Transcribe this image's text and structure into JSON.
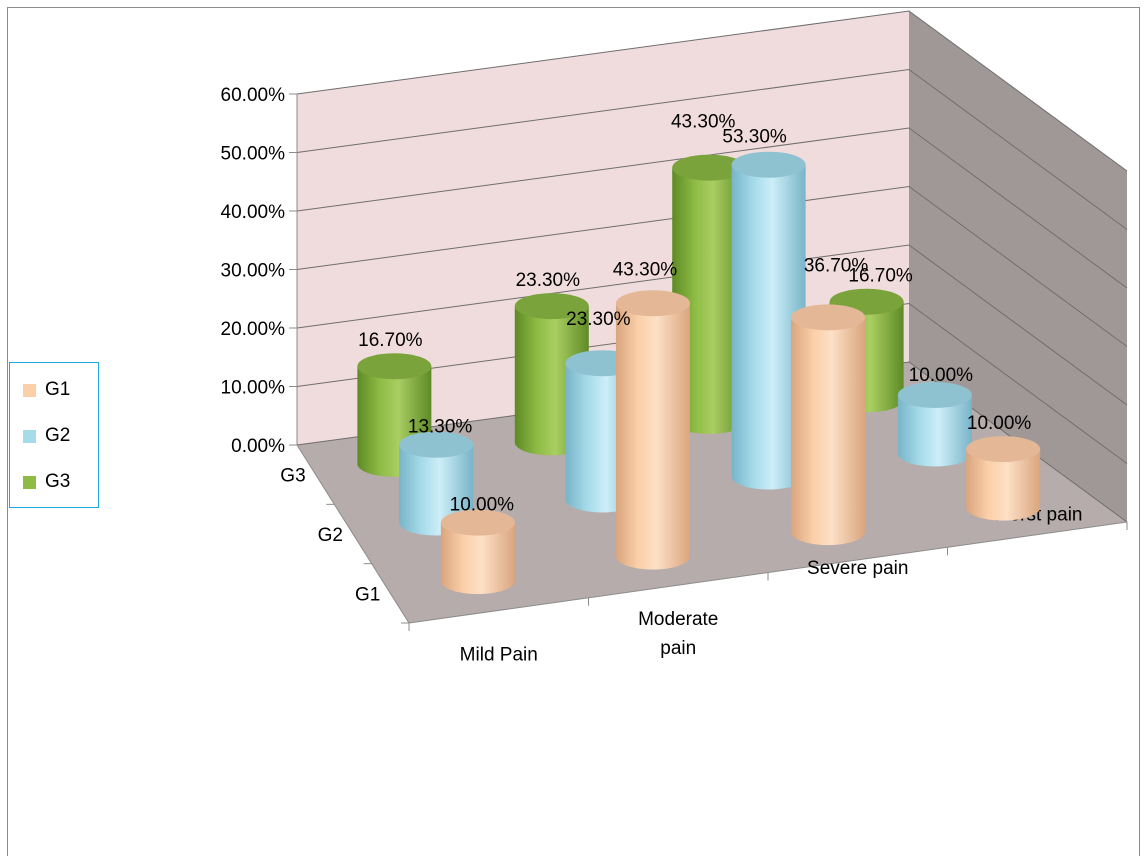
{
  "chart_data": {
    "type": "bar",
    "title": "",
    "categories": [
      "Mild Pain",
      "Moderate pain",
      "Severe pain",
      "Worst pain"
    ],
    "category_label_lines": [
      [
        "Mild Pain"
      ],
      [
        "Moderate",
        "pain"
      ],
      [
        "Severe pain"
      ],
      [
        "Worst pain"
      ]
    ],
    "depth_labels": [
      "G3",
      "G2",
      "G1"
    ],
    "series": [
      {
        "name": "G1",
        "values": [
          10.0,
          43.3,
          36.7,
          10.0
        ],
        "labels": [
          "10.00%",
          "43.30%",
          "36.70%",
          "10.00%"
        ]
      },
      {
        "name": "G2",
        "values": [
          13.3,
          23.3,
          53.3,
          10.0
        ],
        "labels": [
          "13.30%",
          "23.30%",
          "53.30%",
          "10.00%"
        ]
      },
      {
        "name": "G3",
        "values": [
          16.7,
          23.3,
          43.3,
          16.7
        ],
        "labels": [
          "16.70%",
          "23.30%",
          "43.30%",
          "16.70%"
        ]
      }
    ],
    "y_ticks": [
      "0.00%",
      "10.00%",
      "20.00%",
      "30.00%",
      "40.00%",
      "50.00%",
      "60.00%"
    ],
    "ylim": [
      0,
      60
    ],
    "grid": true,
    "legend_position": "left",
    "three_d": true
  },
  "colors": {
    "G1": {
      "light": "#fde0c6",
      "mid": "#fbcfa8",
      "dark": "#d9a57e",
      "top": "#e4b896"
    },
    "G2": {
      "light": "#cdeef8",
      "mid": "#a6dbea",
      "dark": "#78b4c8",
      "top": "#8fc2d1"
    },
    "G3": {
      "light": "#a9ce62",
      "mid": "#8dbb44",
      "dark": "#5e8a26",
      "top": "#7aa33b"
    },
    "back_wall": "#f1dcdd",
    "side_wall": "#a09897",
    "floor": "#b6acab",
    "gridline": "#6e6e6e",
    "legend_border": "#1fa9e1"
  },
  "legend": {
    "items": [
      {
        "label": "G1",
        "color": "#fbcfa8"
      },
      {
        "label": "G2",
        "color": "#a6dbea"
      },
      {
        "label": "G3",
        "color": "#8dbb44"
      }
    ]
  }
}
